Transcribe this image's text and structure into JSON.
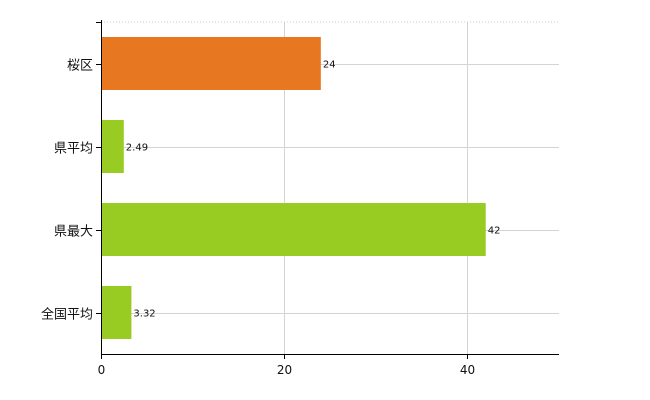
{
  "chart_data": {
    "type": "bar",
    "orientation": "horizontal",
    "categories": [
      "桜区",
      "県平均",
      "県最大",
      "全国平均"
    ],
    "values": [
      24,
      2.49,
      42,
      3.32
    ],
    "value_labels": [
      "24",
      "2.49",
      "42",
      "3.32"
    ],
    "bar_colors": [
      "#e87722",
      "#99cc22",
      "#99cc22",
      "#99cc22"
    ],
    "xlim": [
      0,
      50
    ],
    "x_ticks": [
      0,
      20,
      40
    ],
    "x_tick_labels": [
      "0",
      "20",
      "40"
    ],
    "grid": true
  }
}
